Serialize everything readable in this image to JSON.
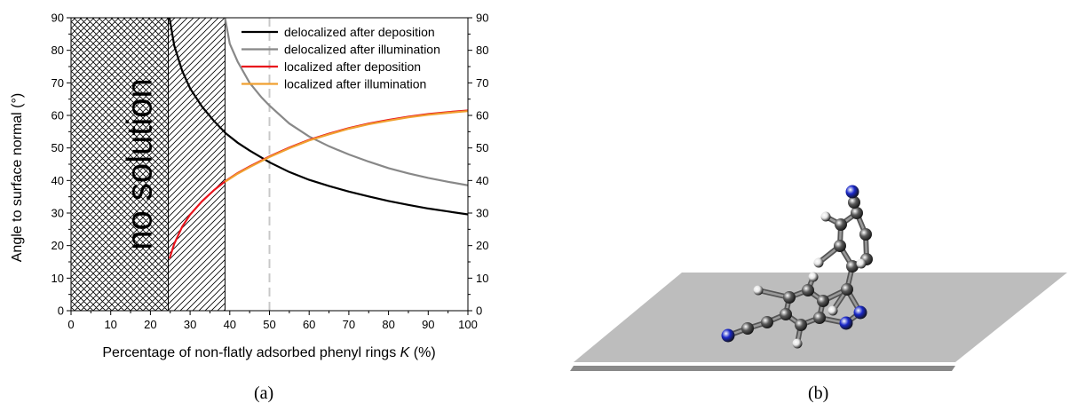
{
  "figure_a": {
    "caption": "(a)",
    "region_label": "no solution",
    "chart_data": {
      "type": "line",
      "xlabel_prefix": "Percentage of non-flatly adsorbed phenyl rings ",
      "xlabel_italic": "K",
      "xlabel_suffix": " (%)",
      "ylabel": "Angle to surface normal (°)",
      "xlim": [
        0,
        100
      ],
      "ylim": [
        0,
        90
      ],
      "xticks": [
        0,
        10,
        20,
        30,
        40,
        50,
        60,
        70,
        80,
        90,
        100
      ],
      "yticks": [
        0,
        10,
        20,
        30,
        40,
        50,
        60,
        70,
        80,
        90
      ],
      "right_yticks": [
        0,
        10,
        20,
        30,
        40,
        50,
        60,
        70,
        80,
        90
      ],
      "grid": false,
      "legend_position": "top-right",
      "no_solution_regions": [
        {
          "x_range": [
            0,
            24.5
          ],
          "pattern": "crosshatch"
        },
        {
          "x_range": [
            24.5,
            38.8
          ],
          "pattern": "diagonal"
        }
      ],
      "reference_line": {
        "x": 50,
        "style": "dashed",
        "color": "#c8c8c8"
      },
      "series": [
        {
          "name": "delocalized after deposition",
          "color": "#000000",
          "x": [
            24.8,
            26,
            28,
            30,
            33,
            36,
            39,
            42,
            45,
            50,
            55,
            60,
            65,
            70,
            75,
            80,
            85,
            90,
            95,
            100
          ],
          "y": [
            90,
            81.5,
            73.7,
            68.3,
            62.7,
            58.3,
            54.5,
            51.6,
            49.2,
            45.6,
            42.6,
            40.2,
            38.3,
            36.6,
            35.1,
            33.7,
            32.5,
            31.4,
            30.5,
            29.6
          ]
        },
        {
          "name": "delocalized after illumination",
          "color": "#888888",
          "x": [
            38.8,
            40,
            42,
            45,
            48,
            50,
            55,
            60,
            65,
            70,
            75,
            80,
            85,
            90,
            95,
            100
          ],
          "y": [
            90,
            82,
            76.5,
            70,
            65.5,
            63,
            57.5,
            53.5,
            50.5,
            48,
            45.8,
            43.8,
            42.2,
            40.8,
            39.6,
            38.5
          ]
        },
        {
          "name": "localized after deposition",
          "color": "#e8141c",
          "x": [
            24.8,
            26,
            28,
            30,
            33,
            36,
            39,
            42,
            45,
            50,
            55,
            60,
            65,
            70,
            75,
            80,
            85,
            90,
            95,
            100
          ],
          "y": [
            16,
            20.5,
            25.8,
            29.5,
            33.6,
            37,
            39.9,
            42.3,
            44.3,
            47.4,
            50.1,
            52.5,
            54.4,
            56.1,
            57.5,
            58.6,
            59.6,
            60.4,
            61,
            61.5
          ]
        },
        {
          "name": "localized after illumination",
          "color": "#f0a030",
          "x": [
            38.8,
            42,
            45,
            50,
            55,
            60,
            65,
            70,
            75,
            80,
            85,
            90,
            95,
            100
          ],
          "y": [
            39.6,
            42.1,
            44.1,
            47.2,
            49.9,
            52.3,
            54.2,
            55.9,
            57.3,
            58.4,
            59.4,
            60.2,
            60.8,
            61.3
          ]
        }
      ]
    }
  },
  "figure_b": {
    "caption": "(b)",
    "colors": {
      "surface": "#bdbdbd",
      "surface_shadow": "#8a8a8a",
      "carbon": "#5a5a5a",
      "nitrogen": "#1a28c8",
      "hydrogen": "#e6e6e6"
    }
  }
}
